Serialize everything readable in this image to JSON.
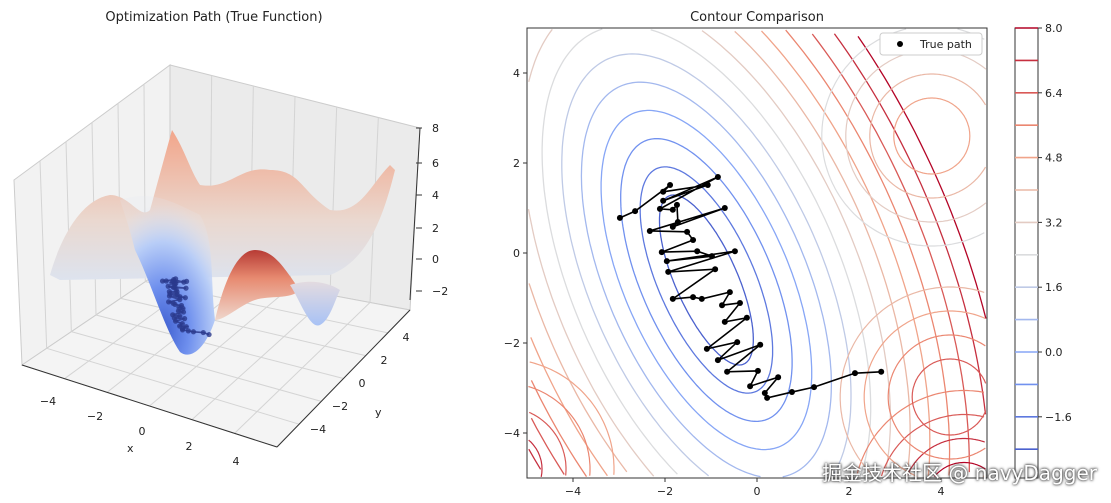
{
  "chart_data": [
    {
      "type": "surface3d",
      "title": "Optimization Path (True Function)",
      "xlabel": "x",
      "ylabel": "y",
      "zlabel": "",
      "xticks": [
        "−4",
        "−2",
        "0",
        "2",
        "4"
      ],
      "yticks": [
        "−4",
        "−2",
        "0",
        "2",
        "4"
      ],
      "zticks": [
        "−2",
        "0",
        "2",
        "4",
        "6",
        "8"
      ],
      "xlim": [
        -5,
        5
      ],
      "ylim": [
        -5,
        5
      ],
      "zlim": [
        -3,
        8
      ],
      "colormap": "coolwarm"
    },
    {
      "type": "contour",
      "title": "Contour Comparison",
      "xticks": [
        "−4",
        "−2",
        "0",
        "2",
        "4"
      ],
      "xtick_values": [
        -4,
        -2,
        0,
        2,
        4
      ],
      "yticks": [
        "4",
        "2",
        "0",
        "−2",
        "−4"
      ],
      "ytick_values": [
        4,
        2,
        0,
        -2,
        -4
      ],
      "xlim": [
        -5,
        5
      ],
      "ylim": [
        -5,
        5
      ],
      "levels": [
        -2.4,
        -1.6,
        -0.8,
        0.0,
        0.8,
        1.6,
        2.4,
        3.2,
        4.0,
        4.8,
        5.6,
        6.4,
        7.2,
        8.0
      ],
      "colorbar": {
        "ticks": [
          "8.0",
          "6.4",
          "4.8",
          "3.2",
          "1.6",
          "0.0",
          "−1.6"
        ],
        "tick_values": [
          8.0,
          6.4,
          4.8,
          3.2,
          1.6,
          0.0,
          -1.6
        ],
        "range": [
          -3.1,
          8.0
        ]
      },
      "legend": {
        "label": "True path",
        "placement": "top-right"
      },
      "series": [
        {
          "name": "True path",
          "x": [
            2.7,
            2.13,
            1.24,
            0.76,
            0.22,
            0.17,
            0.46,
            -0.15,
            0.02,
            -0.65,
            0.07,
            -0.85,
            -0.43,
            -1.09,
            -0.22,
            -0.7,
            -0.37,
            -0.76,
            -0.59,
            -1.2,
            -1.39,
            -1.83,
            -0.91,
            -1.93,
            -0.48,
            -1.96,
            -0.98,
            -1.3,
            -2.07,
            -1.39,
            -1.52,
            -2.33,
            -0.7,
            -1.83,
            -1.72,
            -1.74,
            -1.83,
            -2.11,
            -0.85,
            -2.04,
            -1.07,
            -2.04,
            -1.89,
            -2.65,
            -2.98
          ],
          "y": [
            -2.64,
            -2.67,
            -2.98,
            -3.09,
            -3.22,
            -3.11,
            -2.76,
            -2.96,
            -2.62,
            -2.64,
            -2.04,
            -2.38,
            -1.98,
            -2.13,
            -1.44,
            -1.53,
            -1.11,
            -1.16,
            -0.87,
            -1.02,
            -0.98,
            -1.02,
            -0.36,
            -0.42,
            0.04,
            -0.18,
            -0.07,
            0.04,
            0.02,
            0.29,
            0.47,
            0.49,
            1.0,
            0.58,
            0.69,
            1.07,
            0.96,
            0.98,
            1.69,
            1.16,
            1.51,
            1.36,
            1.51,
            0.93,
            0.78
          ]
        }
      ]
    }
  ],
  "watermark": "掘金技术社区 @ navyDagger",
  "colors": {
    "path": "#000000",
    "path3d": "#2b3a8c"
  }
}
